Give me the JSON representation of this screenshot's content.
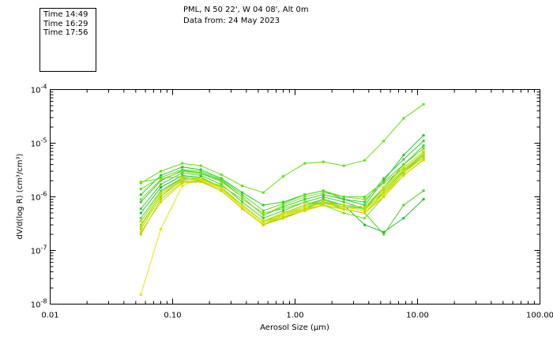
{
  "header": {
    "location": "PML, N 50 22', W 04 08', Alt 0m",
    "date_line": "Data from: 24 May 2023"
  },
  "legend": {
    "entries": [
      {
        "label": "Time 14:49",
        "color": "#22cc22"
      },
      {
        "label": "Time 16:29",
        "color": "#88dd00"
      },
      {
        "label": "Time 17:56",
        "color": "#e6e600"
      }
    ]
  },
  "chart_data": {
    "type": "line",
    "title": "PML, N 50 22', W 04 08', Alt 0m",
    "subtitle": "Data from: 24 May 2023",
    "xlabel": "Aerosol Size (μm)",
    "ylabel": "dV/d(log R) (cm³/cm³)",
    "xscale": "log",
    "yscale": "log",
    "xlim": [
      0.01,
      100
    ],
    "ylim": [
      1e-08,
      0.0001
    ],
    "xticks": [
      {
        "value": 0.01,
        "label": "0.01"
      },
      {
        "value": 0.1,
        "label": "0.10"
      },
      {
        "value": 1,
        "label": "1.00"
      },
      {
        "value": 10,
        "label": "10.00"
      },
      {
        "value": 100,
        "label": "100.00"
      }
    ],
    "yticks": [
      {
        "value": 1e-08,
        "mantissa": "10",
        "exponent": "-8"
      },
      {
        "value": 1e-07,
        "mantissa": "10",
        "exponent": "-7"
      },
      {
        "value": 1e-06,
        "mantissa": "10",
        "exponent": "-6"
      },
      {
        "value": 1e-05,
        "mantissa": "10",
        "exponent": "-5"
      },
      {
        "value": 0.0001,
        "mantissa": "10",
        "exponent": "-4"
      }
    ],
    "x": [
      0.055,
      0.08,
      0.12,
      0.17,
      0.25,
      0.37,
      0.55,
      0.8,
      1.2,
      1.7,
      2.5,
      3.7,
      5.3,
      7.7,
      11.2
    ],
    "series": [
      {
        "name": "14:49",
        "color": "#22cc22",
        "values": [
          1.1e-06,
          2.5e-06,
          3.6e-06,
          3.2e-06,
          2.2e-06,
          1.2e-06,
          7e-07,
          8e-07,
          1.1e-06,
          1.3e-06,
          9e-07,
          7e-07,
          2e-06,
          6e-06,
          1.4e-05
        ]
      },
      {
        "name": "",
        "color": "#33cc33",
        "values": [
          8e-07,
          2e-06,
          3.1e-06,
          2.8e-06,
          2e-06,
          1e-06,
          4.5e-07,
          6.5e-07,
          9e-07,
          1.1e-06,
          9e-07,
          8e-07,
          2.2e-06,
          5e-06,
          1.1e-05
        ]
      },
      {
        "name": "",
        "color": "#44cc22",
        "values": [
          6e-07,
          1.7e-06,
          2.8e-06,
          2.5e-06,
          1.7e-06,
          8e-07,
          4e-07,
          5.5e-07,
          8e-07,
          1e-06,
          8e-07,
          6e-07,
          1.5e-06,
          4e-06,
          9e-06
        ]
      },
      {
        "name": "",
        "color": "#22bb33",
        "values": [
          5e-07,
          1.5e-06,
          2.5e-06,
          2.3e-06,
          1.5e-06,
          7e-07,
          3.5e-07,
          5e-07,
          7e-07,
          9e-07,
          7e-07,
          3e-07,
          2.2e-07,
          4e-07,
          9e-07
        ]
      },
      {
        "name": "",
        "color": "#66dd11",
        "values": [
          1.8e-06,
          3e-06,
          4.2e-06,
          3.8e-06,
          2.6e-06,
          1.6e-06,
          1.2e-06,
          2.4e-06,
          4.2e-06,
          4.5e-06,
          3.8e-06,
          4.8e-06,
          1.1e-05,
          2.9e-05,
          5.3e-05
        ]
      },
      {
        "name": "",
        "color": "#55cc22",
        "values": [
          3.5e-07,
          1.2e-06,
          2.2e-06,
          2e-06,
          1.3e-06,
          6e-07,
          3e-07,
          4e-07,
          6e-07,
          8e-07,
          6e-07,
          5e-07,
          2e-07,
          7e-07,
          1.3e-06
        ]
      },
      {
        "name": "",
        "color": "#77dd22",
        "values": [
          1.9e-06,
          2.2e-06,
          2.4e-06,
          2.1e-06,
          1.6e-06,
          9e-07,
          5e-07,
          6e-07,
          8e-07,
          7e-07,
          5e-07,
          4e-07,
          1e-06,
          2.5e-06,
          5e-06
        ]
      },
      {
        "name": "",
        "color": "#88dd22",
        "values": [
          9e-07,
          2.1e-06,
          3e-06,
          2.7e-06,
          1.9e-06,
          1e-06,
          4.5e-07,
          7e-07,
          1e-06,
          1.2e-06,
          1e-06,
          9e-07,
          1.8e-06,
          3.5e-06,
          7e-06
        ]
      },
      {
        "name": "",
        "color": "#44dd44",
        "values": [
          4e-07,
          1.3e-06,
          2.3e-06,
          2.2e-06,
          1.5e-06,
          7e-07,
          3.5e-07,
          5e-07,
          7e-07,
          8e-07,
          7e-07,
          6e-07,
          1.2e-06,
          3e-06,
          6e-06
        ]
      },
      {
        "name": "",
        "color": "#55dd22",
        "values": [
          1.4e-06,
          2.3e-06,
          3.2e-06,
          3e-06,
          2.1e-06,
          1.1e-06,
          5.5e-07,
          7.5e-07,
          1.1e-06,
          1.3e-06,
          1e-06,
          1e-06,
          1.9e-06,
          4e-06,
          8e-06
        ]
      },
      {
        "name": "16:29",
        "color": "#88dd00",
        "values": [
          3e-07,
          1.1e-06,
          2e-06,
          1.9e-06,
          1.3e-06,
          6e-07,
          3e-07,
          4.5e-07,
          6e-07,
          7e-07,
          6e-07,
          5e-07,
          1.1e-06,
          2.8e-06,
          5.5e-06
        ]
      },
      {
        "name": "",
        "color": "#99dd00",
        "values": [
          2.5e-07,
          1e-06,
          2.1e-06,
          2.2e-06,
          1.4e-06,
          7e-07,
          3.5e-07,
          4.5e-07,
          6.5e-07,
          8e-07,
          6.5e-07,
          6e-07,
          1.4e-06,
          3.2e-06,
          6.5e-06
        ]
      },
      {
        "name": "",
        "color": "#aadd00",
        "values": [
          2e-07,
          9e-07,
          1.9e-06,
          2e-06,
          1.3e-06,
          6e-07,
          3e-07,
          4e-07,
          5.5e-07,
          7e-07,
          6e-07,
          5e-07,
          1.2e-06,
          3e-06,
          5.5e-06
        ]
      },
      {
        "name": "",
        "color": "#bbdd00",
        "values": [
          3.5e-07,
          1.2e-06,
          2.3e-06,
          2.2e-06,
          1.5e-06,
          7e-07,
          3.5e-07,
          5e-07,
          7e-07,
          8.5e-07,
          7e-07,
          6.5e-07,
          1.5e-06,
          3.5e-06,
          7e-06
        ]
      },
      {
        "name": "",
        "color": "#ccdd00",
        "values": [
          2.8e-07,
          1.1e-06,
          2.1e-06,
          2.1e-06,
          1.4e-06,
          6.5e-07,
          3.2e-07,
          4.8e-07,
          6.5e-07,
          7.5e-07,
          6.5e-07,
          5.5e-07,
          1.3e-06,
          3.1e-06,
          6.2e-06
        ]
      },
      {
        "name": "17:56",
        "color": "#e6e600",
        "values": [
          1.5e-08,
          2.5e-07,
          1.6e-06,
          2.2e-06,
          1.4e-06,
          6.5e-07,
          3.2e-07,
          4.5e-07,
          6e-07,
          7e-07,
          6e-07,
          5e-07,
          1.1e-06,
          2.5e-06,
          4.8e-06
        ]
      },
      {
        "name": "",
        "color": "#ddcc00",
        "values": [
          2.2e-07,
          8e-07,
          1.8e-06,
          1.9e-06,
          1.3e-06,
          6e-07,
          3e-07,
          4.2e-07,
          5.8e-07,
          7e-07,
          5.8e-07,
          5e-07,
          1e-06,
          2.5e-06,
          5e-06
        ]
      }
    ]
  }
}
